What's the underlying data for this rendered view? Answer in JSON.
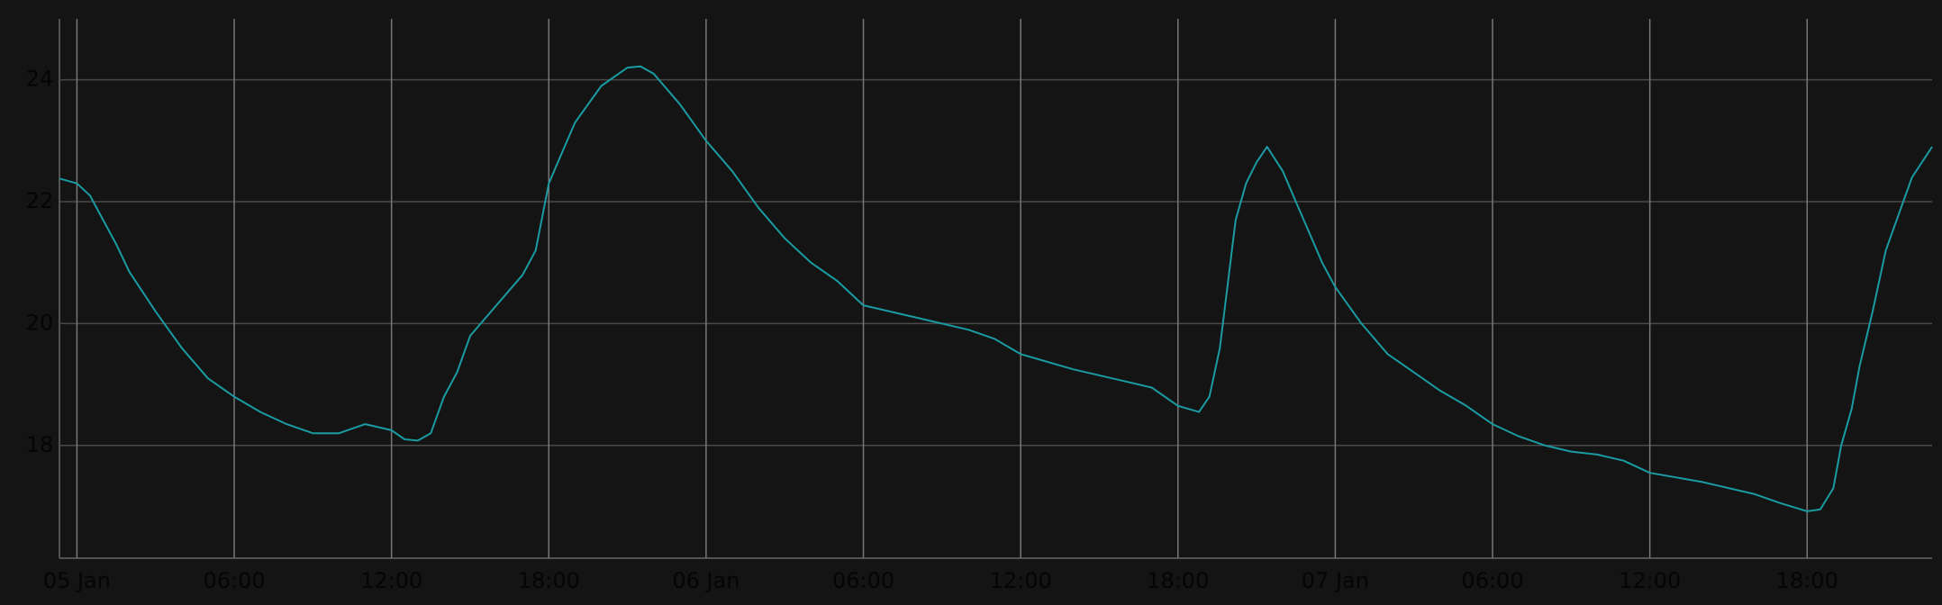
{
  "chart_data": {
    "type": "line",
    "x": [
      "04 Jan 23:20",
      "05 Jan 00:00",
      "05 Jan 00:30",
      "05 Jan 01:00",
      "05 Jan 01:30",
      "05 Jan 02:00",
      "05 Jan 03:00",
      "05 Jan 04:00",
      "05 Jan 05:00",
      "05 Jan 06:00",
      "05 Jan 07:00",
      "05 Jan 08:00",
      "05 Jan 09:00",
      "05 Jan 10:00",
      "05 Jan 11:00",
      "05 Jan 12:00",
      "05 Jan 12:30",
      "05 Jan 13:00",
      "05 Jan 13:30",
      "05 Jan 14:00",
      "05 Jan 14:30",
      "05 Jan 15:00",
      "05 Jan 16:00",
      "05 Jan 17:00",
      "05 Jan 17:30",
      "05 Jan 18:00",
      "05 Jan 18:30",
      "05 Jan 19:00",
      "05 Jan 20:00",
      "05 Jan 21:00",
      "05 Jan 21:30",
      "05 Jan 22:00",
      "05 Jan 23:00",
      "06 Jan 00:00",
      "06 Jan 01:00",
      "06 Jan 02:00",
      "06 Jan 03:00",
      "06 Jan 04:00",
      "06 Jan 05:00",
      "06 Jan 06:00",
      "06 Jan 08:00",
      "06 Jan 10:00",
      "06 Jan 11:00",
      "06 Jan 12:00",
      "06 Jan 14:00",
      "06 Jan 16:00",
      "06 Jan 17:00",
      "06 Jan 18:00",
      "06 Jan 18:48",
      "06 Jan 19:12",
      "06 Jan 19:36",
      "06 Jan 20:12",
      "06 Jan 20:36",
      "06 Jan 21:00",
      "06 Jan 21:24",
      "06 Jan 22:00",
      "06 Jan 22:30",
      "06 Jan 23:00",
      "06 Jan 23:30",
      "07 Jan 00:00",
      "07 Jan 01:00",
      "07 Jan 02:00",
      "07 Jan 03:00",
      "07 Jan 04:00",
      "07 Jan 05:00",
      "07 Jan 06:00",
      "07 Jan 07:00",
      "07 Jan 08:00",
      "07 Jan 09:00",
      "07 Jan 10:00",
      "07 Jan 11:00",
      "07 Jan 12:00",
      "07 Jan 14:00",
      "07 Jan 16:00",
      "07 Jan 17:00",
      "07 Jan 18:00",
      "07 Jan 18:30",
      "07 Jan 19:00",
      "07 Jan 19:18",
      "07 Jan 19:42",
      "07 Jan 20:00",
      "07 Jan 20:30",
      "07 Jan 21:00",
      "07 Jan 21:30",
      "07 Jan 22:00",
      "07 Jan 22:46"
    ],
    "series": [
      {
        "color": "#1a9ba1",
        "values": [
          22.38,
          22.3,
          22.1,
          21.7,
          21.3,
          20.85,
          20.2,
          19.6,
          19.1,
          18.8,
          18.55,
          18.35,
          18.2,
          18.2,
          18.35,
          18.25,
          18.1,
          18.08,
          18.2,
          18.8,
          19.2,
          19.8,
          20.3,
          20.8,
          21.2,
          22.3,
          22.8,
          23.3,
          23.9,
          24.2,
          24.22,
          24.1,
          23.6,
          23.0,
          22.5,
          21.9,
          21.4,
          21.0,
          20.7,
          20.3,
          20.1,
          19.9,
          19.75,
          19.5,
          19.25,
          19.05,
          18.95,
          18.65,
          18.55,
          18.8,
          19.6,
          21.7,
          22.3,
          22.65,
          22.9,
          22.5,
          22.0,
          21.5,
          21.0,
          20.6,
          20.0,
          19.5,
          19.2,
          18.9,
          18.65,
          18.35,
          18.15,
          18.0,
          17.9,
          17.85,
          17.75,
          17.55,
          17.4,
          17.2,
          17.05,
          16.92,
          16.95,
          17.3,
          18.0,
          18.6,
          19.3,
          20.2,
          21.2,
          21.8,
          22.4,
          22.9
        ]
      }
    ],
    "xlim": [
      "04 Jan 23:20",
      "07 Jan 22:46"
    ],
    "xticks": [
      {
        "value": "05 Jan 00:00",
        "label": "05 Jan"
      },
      {
        "value": "05 Jan 06:00",
        "label": "06:00"
      },
      {
        "value": "05 Jan 12:00",
        "label": "12:00"
      },
      {
        "value": "05 Jan 18:00",
        "label": "18:00"
      },
      {
        "value": "06 Jan 00:00",
        "label": "06 Jan"
      },
      {
        "value": "06 Jan 06:00",
        "label": "06:00"
      },
      {
        "value": "06 Jan 12:00",
        "label": "12:00"
      },
      {
        "value": "06 Jan 18:00",
        "label": "18:00"
      },
      {
        "value": "07 Jan 00:00",
        "label": "07 Jan"
      },
      {
        "value": "07 Jan 06:00",
        "label": "06:00"
      },
      {
        "value": "07 Jan 12:00",
        "label": "12:00"
      },
      {
        "value": "07 Jan 18:00",
        "label": "18:00"
      }
    ],
    "ylim": [
      16.15,
      25.0
    ],
    "yticks": [
      18,
      20,
      22,
      24
    ],
    "grid": true
  }
}
